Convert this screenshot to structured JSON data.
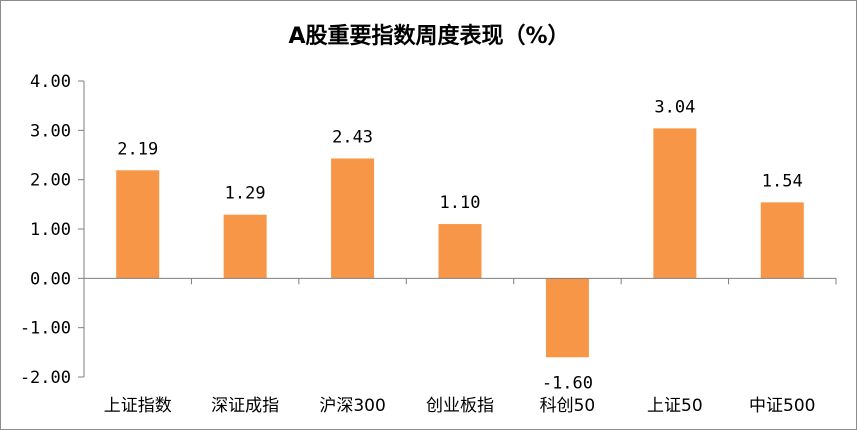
{
  "chart_data": {
    "type": "bar",
    "title": "A股重要指数周度表现（%）",
    "categories": [
      "上证指数",
      "深证成指",
      "沪深300",
      "创业板指",
      "科创50",
      "上证50",
      "中证500"
    ],
    "values": [
      2.19,
      1.29,
      2.43,
      1.1,
      -1.6,
      3.04,
      1.54
    ],
    "data_labels": [
      "2.19",
      "1.29",
      "2.43",
      "1.10",
      "-1.60",
      "3.04",
      "1.54"
    ],
    "y_ticks": [
      "4.00",
      "3.00",
      "2.00",
      "1.00",
      "0.00",
      "-1.00",
      "-2.00"
    ],
    "y_tick_values": [
      4,
      3,
      2,
      1,
      0,
      -1,
      -2
    ],
    "ylim": [
      -2,
      4
    ],
    "grid": false,
    "legend": "none",
    "bar_color": "#F79646",
    "axis_color": "#7f7f7f"
  }
}
